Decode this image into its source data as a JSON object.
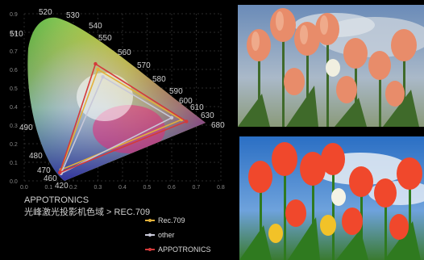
{
  "diagram": {
    "wavelength_labels": [
      "520",
      "530",
      "540",
      "550",
      "560",
      "570",
      "580",
      "590",
      "600",
      "610",
      "630",
      "680",
      "510",
      "490",
      "480",
      "470",
      "460",
      "420"
    ],
    "axis_ticks_x": [
      "0.0",
      "0.1",
      "0.2",
      "0.3",
      "0.4",
      "0.5",
      "0.6",
      "0.7",
      "0.8"
    ],
    "axis_ticks_y": [
      "0.9",
      "0.8",
      "0.7",
      "0.6",
      "0.5",
      "0.4",
      "0.3",
      "0.2",
      "0.1",
      "0.0"
    ],
    "caption_line1": "APPOTRONICS",
    "caption_line2": "光峰激光投影机色域 > REC.709",
    "gamuts": [
      {
        "name": "Rec.709",
        "color": "#e2b13a",
        "points": [
          [
            0.64,
            0.33
          ],
          [
            0.3,
            0.6
          ],
          [
            0.15,
            0.06
          ]
        ]
      },
      {
        "name": "other",
        "color": "#c8c8d8",
        "points": [
          [
            0.6,
            0.34
          ],
          [
            0.32,
            0.56
          ],
          [
            0.15,
            0.04
          ]
        ]
      },
      {
        "name": "APPOTRONICS",
        "color": "#d43a3a",
        "points": [
          [
            0.66,
            0.32
          ],
          [
            0.29,
            0.63
          ],
          [
            0.145,
            0.045
          ]
        ]
      }
    ]
  },
  "legend": {
    "items": [
      {
        "label": "Rec.709",
        "color": "#e2b13a"
      },
      {
        "label": "other",
        "color": "#c8c8d8"
      },
      {
        "label": "APPOTRONICS",
        "color": "#d43a3a"
      }
    ]
  },
  "photos": {
    "top": {
      "description_name": "tulips-photo-top"
    },
    "bottom": {
      "description_name": "tulips-photo-bottom"
    }
  }
}
